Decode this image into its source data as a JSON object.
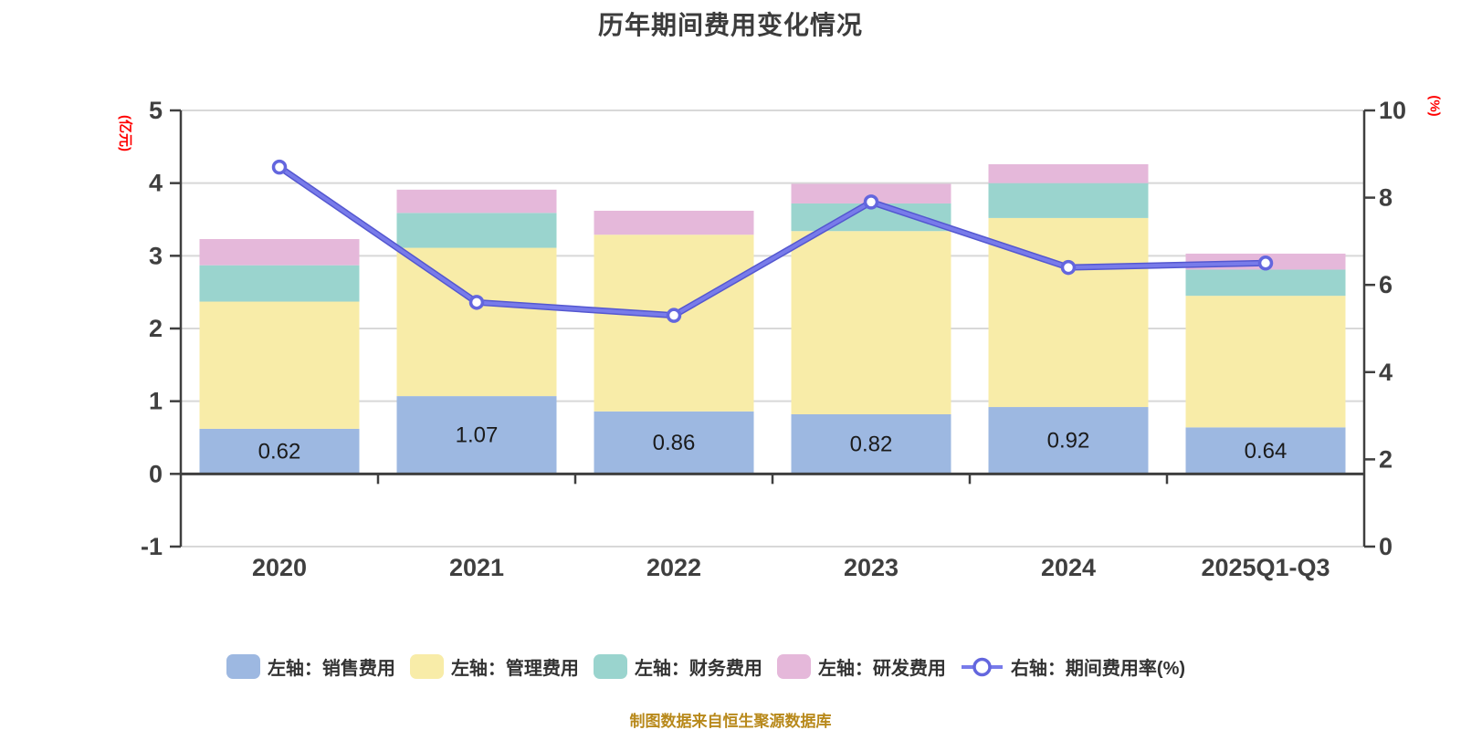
{
  "title": "历年期间费用变化情况",
  "footer": "制图数据来自恒生聚源数据库",
  "left_axis": {
    "unit_label": "(亿元)",
    "ticks": [
      5,
      4,
      3,
      2,
      1,
      0,
      -1
    ],
    "min": -1,
    "max": 5,
    "label_color": "#ff0000"
  },
  "right_axis": {
    "unit_label": "(%)",
    "ticks": [
      10,
      8,
      6,
      4,
      2,
      0
    ],
    "min": 0,
    "max": 10,
    "label_color": "#ff0000"
  },
  "colors": {
    "grid": "#d8d8d8",
    "axis": "#3f3f3f",
    "tick_text": "#3f3f3f",
    "bar_label": "#1a1a1a",
    "line_under": "#5457d0",
    "line_main": "#787bea",
    "marker_stroke": "#6366de",
    "marker_fill": "#ffffff"
  },
  "chart_data": {
    "type": "stacked-bar-with-line",
    "categories": [
      "2020",
      "2021",
      "2022",
      "2023",
      "2024",
      "2025Q1-Q3"
    ],
    "series": [
      {
        "name": "左轴：销售费用",
        "type": "bar",
        "color": "#9db8e1",
        "values": [
          0.62,
          1.07,
          0.86,
          0.82,
          0.92,
          0.64
        ]
      },
      {
        "name": "左轴：管理费用",
        "type": "bar",
        "color": "#f8eca8",
        "values": [
          1.75,
          2.04,
          2.43,
          2.52,
          2.6,
          1.81
        ]
      },
      {
        "name": "左轴：财务费用",
        "type": "bar",
        "color": "#9ad4ce",
        "values": [
          0.5,
          0.48,
          0.0,
          0.38,
          0.48,
          0.36
        ]
      },
      {
        "name": "左轴：研发费用",
        "type": "bar",
        "color": "#e5b8da",
        "values": [
          0.36,
          0.32,
          0.33,
          0.27,
          0.26,
          0.22
        ]
      },
      {
        "name": "右轴：期间费用率(%)",
        "type": "line",
        "color": "#787bea",
        "values": [
          8.7,
          5.6,
          5.3,
          7.9,
          6.4,
          6.5
        ]
      }
    ],
    "bar_value_labels": [
      "0.62",
      "1.07",
      "0.86",
      "0.82",
      "0.92",
      "0.64"
    ],
    "ylabel_left": "(亿元)",
    "ylabel_right": "(%)",
    "ylim_left": [
      -1,
      5
    ],
    "ylim_right": [
      0,
      10
    ],
    "grid": "horizontal",
    "legend_position": "bottom"
  }
}
